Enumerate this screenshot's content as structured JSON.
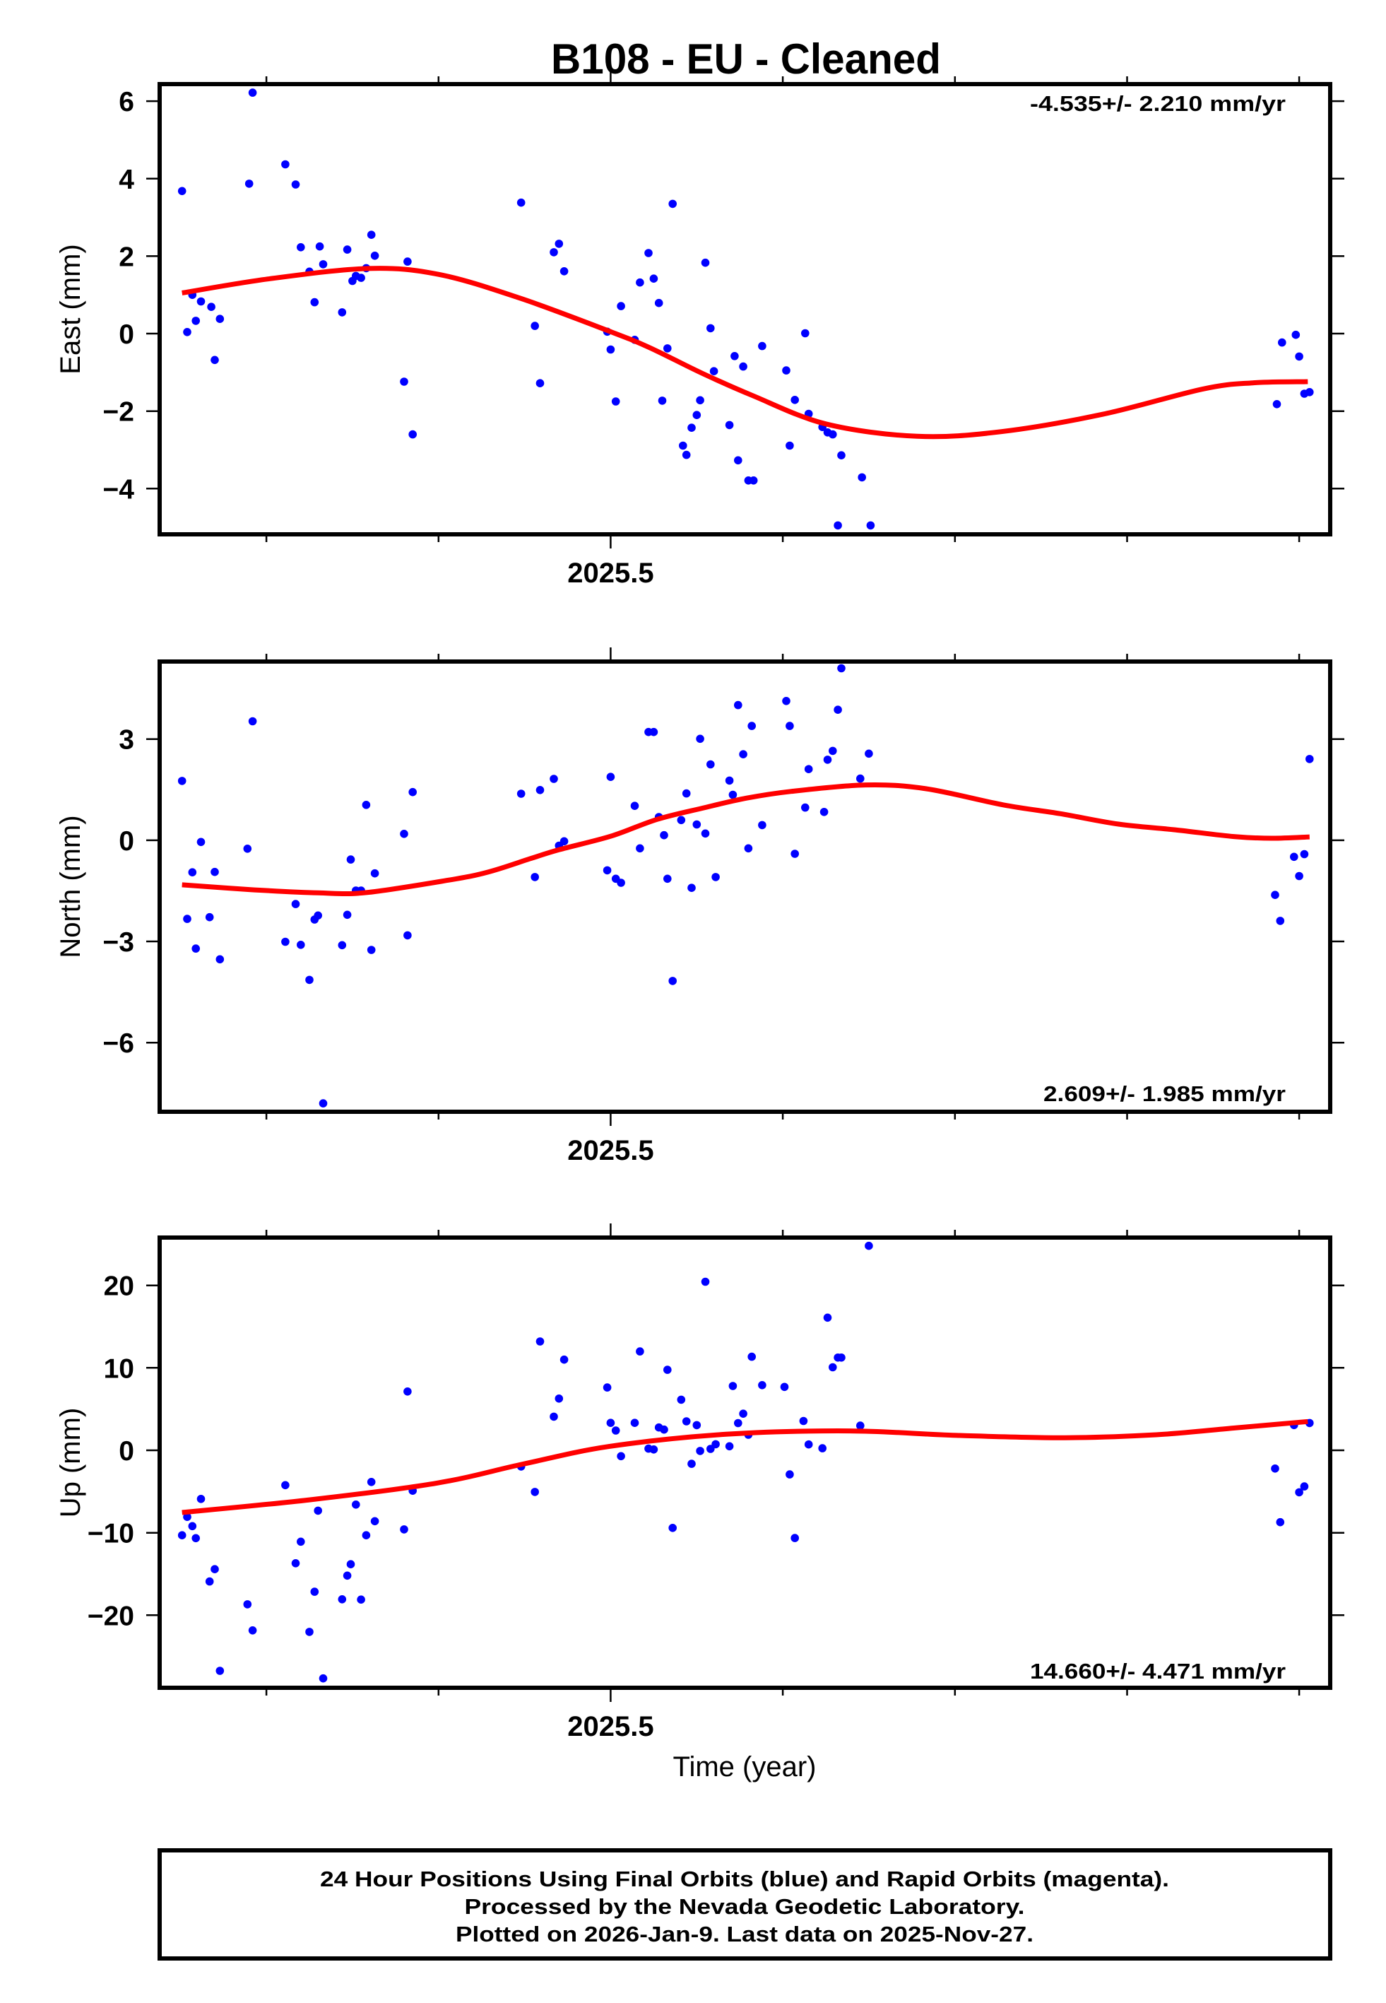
{
  "title": "B108  - EU - Cleaned",
  "x_axis": {
    "xlabel": "Time (year)",
    "xlim": [
      2025.238,
      2025.918
    ],
    "major_ticks": [
      2025.5
    ],
    "minor_ticks": [
      2025.3,
      2025.4,
      2025.6,
      2025.7,
      2025.8,
      2025.9
    ]
  },
  "colors": {
    "points": "#0000FF",
    "fit": "#FF0000",
    "frame": "#000000"
  },
  "chart_data": [
    {
      "type": "scatter",
      "ylabel": "East (mm)",
      "ylim": [
        -5.18,
        6.44
      ],
      "yticks": [
        -4,
        -2,
        0,
        2,
        4,
        6
      ],
      "ytick_labels": [
        "−4",
        "−2",
        "0",
        "2",
        "4",
        "6"
      ],
      "xtick_labels": [
        "2025.5"
      ],
      "rate_label": "-4.535+/- 2.210 mm/yr",
      "points": [
        [
          2025.251,
          3.68
        ],
        [
          2025.254,
          0.04
        ],
        [
          2025.257,
          1.0
        ],
        [
          2025.259,
          0.33
        ],
        [
          2025.262,
          0.83
        ],
        [
          2025.268,
          0.69
        ],
        [
          2025.27,
          -0.68
        ],
        [
          2025.273,
          0.38
        ],
        [
          2025.29,
          3.87
        ],
        [
          2025.292,
          6.22
        ],
        [
          2025.311,
          4.37
        ],
        [
          2025.317,
          3.85
        ],
        [
          2025.32,
          2.23
        ],
        [
          2025.325,
          1.6
        ],
        [
          2025.328,
          0.81
        ],
        [
          2025.331,
          2.25
        ],
        [
          2025.333,
          1.79
        ],
        [
          2025.344,
          0.55
        ],
        [
          2025.347,
          2.17
        ],
        [
          2025.35,
          1.36
        ],
        [
          2025.352,
          1.49
        ],
        [
          2025.355,
          1.44
        ],
        [
          2025.358,
          1.69
        ],
        [
          2025.361,
          2.55
        ],
        [
          2025.363,
          2.01
        ],
        [
          2025.38,
          -1.24
        ],
        [
          2025.382,
          1.86
        ],
        [
          2025.385,
          -2.6
        ],
        [
          2025.448,
          3.38
        ],
        [
          2025.456,
          0.2
        ],
        [
          2025.459,
          -1.28
        ],
        [
          2025.467,
          2.1
        ],
        [
          2025.47,
          2.32
        ],
        [
          2025.473,
          1.61
        ],
        [
          2025.498,
          0.05
        ],
        [
          2025.5,
          -0.41
        ],
        [
          2025.503,
          -1.75
        ],
        [
          2025.506,
          0.71
        ],
        [
          2025.514,
          -0.16
        ],
        [
          2025.517,
          1.32
        ],
        [
          2025.522,
          2.08
        ],
        [
          2025.525,
          1.42
        ],
        [
          2025.528,
          0.79
        ],
        [
          2025.53,
          -1.73
        ],
        [
          2025.533,
          -0.38
        ],
        [
          2025.536,
          3.35
        ],
        [
          2025.542,
          -2.89
        ],
        [
          2025.544,
          -3.13
        ],
        [
          2025.547,
          -2.43
        ],
        [
          2025.55,
          -2.1
        ],
        [
          2025.552,
          -1.72
        ],
        [
          2025.555,
          1.83
        ],
        [
          2025.558,
          0.14
        ],
        [
          2025.56,
          -0.97
        ],
        [
          2025.569,
          -2.36
        ],
        [
          2025.572,
          -0.58
        ],
        [
          2025.574,
          -3.27
        ],
        [
          2025.577,
          -0.85
        ],
        [
          2025.58,
          -3.79
        ],
        [
          2025.583,
          -3.79
        ],
        [
          2025.588,
          -0.32
        ],
        [
          2025.602,
          -0.95
        ],
        [
          2025.604,
          -2.89
        ],
        [
          2025.607,
          -1.71
        ],
        [
          2025.613,
          0.01
        ],
        [
          2025.615,
          -2.07
        ],
        [
          2025.623,
          -2.41
        ],
        [
          2025.626,
          -2.55
        ],
        [
          2025.629,
          -2.6
        ],
        [
          2025.632,
          -4.95
        ],
        [
          2025.634,
          -3.14
        ],
        [
          2025.646,
          -3.71
        ],
        [
          2025.651,
          -4.95
        ],
        [
          2025.887,
          -1.82
        ],
        [
          2025.89,
          -0.23
        ],
        [
          2025.898,
          -0.03
        ],
        [
          2025.9,
          -0.59
        ],
        [
          2025.903,
          -1.55
        ],
        [
          2025.906,
          -1.51
        ]
      ],
      "fit": [
        [
          2025.251,
          1.05
        ],
        [
          2025.301,
          1.41
        ],
        [
          2025.359,
          1.68
        ],
        [
          2025.4,
          1.53
        ],
        [
          2025.447,
          0.92
        ],
        [
          2025.5,
          0.05
        ],
        [
          2025.523,
          -0.37
        ],
        [
          2025.553,
          -1.02
        ],
        [
          2025.582,
          -1.59
        ],
        [
          2025.625,
          -2.33
        ],
        [
          2025.678,
          -2.65
        ],
        [
          2025.727,
          -2.53
        ],
        [
          2025.786,
          -2.08
        ],
        [
          2025.844,
          -1.43
        ],
        [
          2025.873,
          -1.27
        ],
        [
          2025.905,
          -1.24
        ]
      ]
    },
    {
      "type": "scatter",
      "ylabel": "North (mm)",
      "ylim": [
        -8.05,
        5.3
      ],
      "yticks": [
        -6,
        -3,
        0,
        3
      ],
      "ytick_labels": [
        "−6",
        "−3",
        "0",
        "3"
      ],
      "xtick_labels": [
        "2025.5"
      ],
      "rate_label": "2.609+/- 1.985 mm/yr",
      "points": [
        [
          2025.251,
          1.76
        ],
        [
          2025.254,
          -2.33
        ],
        [
          2025.257,
          -0.95
        ],
        [
          2025.259,
          -3.21
        ],
        [
          2025.262,
          -0.05
        ],
        [
          2025.267,
          -2.28
        ],
        [
          2025.27,
          -0.94
        ],
        [
          2025.273,
          -3.53
        ],
        [
          2025.289,
          -0.25
        ],
        [
          2025.292,
          3.53
        ],
        [
          2025.311,
          -3.01
        ],
        [
          2025.317,
          -1.89
        ],
        [
          2025.32,
          -3.1
        ],
        [
          2025.325,
          -4.14
        ],
        [
          2025.328,
          -2.35
        ],
        [
          2025.33,
          -2.23
        ],
        [
          2025.333,
          -7.8
        ],
        [
          2025.344,
          -3.11
        ],
        [
          2025.347,
          -2.21
        ],
        [
          2025.349,
          -0.57
        ],
        [
          2025.352,
          -1.49
        ],
        [
          2025.355,
          -1.49
        ],
        [
          2025.358,
          1.05
        ],
        [
          2025.361,
          -3.25
        ],
        [
          2025.363,
          -0.98
        ],
        [
          2025.38,
          0.19
        ],
        [
          2025.382,
          -2.82
        ],
        [
          2025.385,
          1.43
        ],
        [
          2025.448,
          1.38
        ],
        [
          2025.456,
          -1.09
        ],
        [
          2025.459,
          1.49
        ],
        [
          2025.467,
          1.82
        ],
        [
          2025.47,
          -0.16
        ],
        [
          2025.473,
          -0.03
        ],
        [
          2025.498,
          -0.89
        ],
        [
          2025.5,
          1.88
        ],
        [
          2025.503,
          -1.14
        ],
        [
          2025.506,
          -1.26
        ],
        [
          2025.514,
          1.02
        ],
        [
          2025.517,
          -0.24
        ],
        [
          2025.522,
          3.21
        ],
        [
          2025.525,
          3.21
        ],
        [
          2025.528,
          0.69
        ],
        [
          2025.531,
          0.15
        ],
        [
          2025.533,
          -1.14
        ],
        [
          2025.536,
          -4.17
        ],
        [
          2025.541,
          0.6
        ],
        [
          2025.544,
          1.39
        ],
        [
          2025.547,
          -1.41
        ],
        [
          2025.55,
          0.47
        ],
        [
          2025.552,
          3.01
        ],
        [
          2025.555,
          0.2
        ],
        [
          2025.558,
          2.25
        ],
        [
          2025.561,
          -1.09
        ],
        [
          2025.569,
          1.77
        ],
        [
          2025.571,
          1.35
        ],
        [
          2025.574,
          4.01
        ],
        [
          2025.577,
          2.55
        ],
        [
          2025.58,
          -0.24
        ],
        [
          2025.582,
          3.39
        ],
        [
          2025.588,
          0.45
        ],
        [
          2025.602,
          4.13
        ],
        [
          2025.604,
          3.39
        ],
        [
          2025.607,
          -0.4
        ],
        [
          2025.613,
          0.97
        ],
        [
          2025.615,
          2.11
        ],
        [
          2025.624,
          0.84
        ],
        [
          2025.626,
          2.39
        ],
        [
          2025.629,
          2.65
        ],
        [
          2025.632,
          3.87
        ],
        [
          2025.634,
          5.1
        ],
        [
          2025.645,
          1.83
        ],
        [
          2025.65,
          2.57
        ],
        [
          2025.886,
          -1.62
        ],
        [
          2025.889,
          -2.39
        ],
        [
          2025.897,
          -0.49
        ],
        [
          2025.9,
          -1.06
        ],
        [
          2025.903,
          -0.41
        ],
        [
          2025.906,
          2.41
        ]
      ],
      "fit": [
        [
          2025.251,
          -1.32
        ],
        [
          2025.29,
          -1.46
        ],
        [
          2025.33,
          -1.56
        ],
        [
          2025.358,
          -1.55
        ],
        [
          2025.406,
          -1.18
        ],
        [
          2025.429,
          -0.94
        ],
        [
          2025.453,
          -0.55
        ],
        [
          2025.47,
          -0.28
        ],
        [
          2025.5,
          0.12
        ],
        [
          2025.527,
          0.62
        ],
        [
          2025.553,
          0.95
        ],
        [
          2025.579,
          1.25
        ],
        [
          2025.605,
          1.45
        ],
        [
          2025.648,
          1.64
        ],
        [
          2025.683,
          1.53
        ],
        [
          2025.728,
          1.05
        ],
        [
          2025.761,
          0.79
        ],
        [
          2025.795,
          0.48
        ],
        [
          2025.828,
          0.31
        ],
        [
          2025.862,
          0.11
        ],
        [
          2025.884,
          0.06
        ],
        [
          2025.906,
          0.1
        ]
      ]
    },
    {
      "type": "scatter",
      "ylabel": "Up (mm)",
      "ylim": [
        -28.8,
        25.8
      ],
      "yticks": [
        -20,
        -10,
        0,
        10,
        20
      ],
      "ytick_labels": [
        "−20",
        "−10",
        "0",
        "10",
        "20"
      ],
      "xtick_labels": [
        "2025.5"
      ],
      "rate_label": "14.660+/- 4.471 mm/yr",
      "points": [
        [
          2025.251,
          -10.3
        ],
        [
          2025.254,
          -8.07
        ],
        [
          2025.257,
          -9.2
        ],
        [
          2025.259,
          -10.65
        ],
        [
          2025.262,
          -5.9
        ],
        [
          2025.267,
          -15.91
        ],
        [
          2025.27,
          -14.42
        ],
        [
          2025.273,
          -26.74
        ],
        [
          2025.289,
          -18.68
        ],
        [
          2025.292,
          -21.84
        ],
        [
          2025.311,
          -4.23
        ],
        [
          2025.317,
          -13.7
        ],
        [
          2025.32,
          -11.08
        ],
        [
          2025.325,
          -22.02
        ],
        [
          2025.328,
          -17.15
        ],
        [
          2025.33,
          -7.32
        ],
        [
          2025.333,
          -27.66
        ],
        [
          2025.344,
          -18.07
        ],
        [
          2025.347,
          -15.2
        ],
        [
          2025.349,
          -13.82
        ],
        [
          2025.352,
          -6.58
        ],
        [
          2025.355,
          -18.1
        ],
        [
          2025.358,
          -10.3
        ],
        [
          2025.361,
          -3.84
        ],
        [
          2025.363,
          -8.6
        ],
        [
          2025.38,
          -9.59
        ],
        [
          2025.382,
          7.13
        ],
        [
          2025.385,
          -4.9
        ],
        [
          2025.448,
          -1.96
        ],
        [
          2025.456,
          -5.05
        ],
        [
          2025.459,
          13.2
        ],
        [
          2025.467,
          4.08
        ],
        [
          2025.47,
          6.27
        ],
        [
          2025.473,
          11.0
        ],
        [
          2025.498,
          7.62
        ],
        [
          2025.5,
          3.33
        ],
        [
          2025.503,
          2.4
        ],
        [
          2025.506,
          -0.71
        ],
        [
          2025.514,
          3.33
        ],
        [
          2025.517,
          11.99
        ],
        [
          2025.522,
          0.21
        ],
        [
          2025.525,
          0.1
        ],
        [
          2025.528,
          2.77
        ],
        [
          2025.531,
          2.51
        ],
        [
          2025.533,
          9.76
        ],
        [
          2025.536,
          -9.41
        ],
        [
          2025.541,
          6.14
        ],
        [
          2025.544,
          3.51
        ],
        [
          2025.547,
          -1.64
        ],
        [
          2025.55,
          3.05
        ],
        [
          2025.552,
          -0.08
        ],
        [
          2025.555,
          20.44
        ],
        [
          2025.558,
          0.17
        ],
        [
          2025.561,
          0.74
        ],
        [
          2025.569,
          0.49
        ],
        [
          2025.571,
          7.8
        ],
        [
          2025.574,
          3.3
        ],
        [
          2025.577,
          4.44
        ],
        [
          2025.58,
          1.89
        ],
        [
          2025.582,
          11.35
        ],
        [
          2025.588,
          7.9
        ],
        [
          2025.601,
          7.69
        ],
        [
          2025.604,
          -2.92
        ],
        [
          2025.607,
          -10.64
        ],
        [
          2025.612,
          3.56
        ],
        [
          2025.615,
          0.71
        ],
        [
          2025.623,
          0.25
        ],
        [
          2025.626,
          16.09
        ],
        [
          2025.629,
          10.07
        ],
        [
          2025.632,
          11.25
        ],
        [
          2025.634,
          11.25
        ],
        [
          2025.645,
          2.99
        ],
        [
          2025.65,
          24.8
        ],
        [
          2025.886,
          -2.21
        ],
        [
          2025.889,
          -8.72
        ],
        [
          2025.897,
          3.06
        ],
        [
          2025.9,
          -5.09
        ],
        [
          2025.903,
          -4.38
        ],
        [
          2025.906,
          3.31
        ]
      ],
      "fit": [
        [
          2025.251,
          -7.54
        ],
        [
          2025.325,
          -6.01
        ],
        [
          2025.399,
          -3.98
        ],
        [
          2025.449,
          -1.67
        ],
        [
          2025.499,
          0.46
        ],
        [
          2025.567,
          1.95
        ],
        [
          2025.639,
          2.35
        ],
        [
          2025.701,
          1.81
        ],
        [
          2025.764,
          1.53
        ],
        [
          2025.817,
          1.89
        ],
        [
          2025.862,
          2.7
        ],
        [
          2025.905,
          3.49
        ]
      ]
    }
  ],
  "footer": {
    "lines": [
      "24 Hour Positions Using Final Orbits (blue) and Rapid Orbits (magenta).",
      "Processed by the Nevada Geodetic Laboratory.",
      "Plotted on 2026-Jan-9. Last data on 2025-Nov-27."
    ]
  }
}
